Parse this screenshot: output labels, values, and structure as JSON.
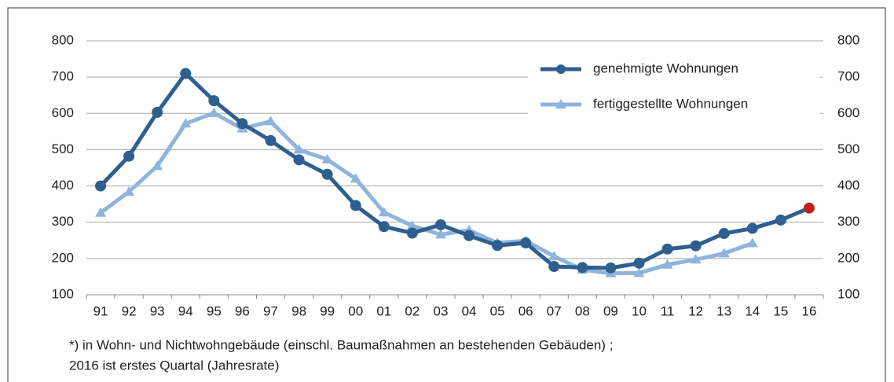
{
  "chart_data": {
    "type": "line",
    "categories": [
      "91",
      "92",
      "93",
      "94",
      "95",
      "96",
      "97",
      "98",
      "99",
      "00",
      "01",
      "02",
      "03",
      "04",
      "05",
      "06",
      "07",
      "08",
      "09",
      "10",
      "11",
      "12",
      "13",
      "14",
      "15",
      "16"
    ],
    "series": [
      {
        "name": "genehmigte Wohnungen",
        "color": "#2e5f8e",
        "marker": "circle",
        "highlight_color": "#c0211e",
        "values": [
          400,
          482,
          603,
          710,
          635,
          572,
          525,
          472,
          432,
          346,
          288,
          270,
          293,
          263,
          236,
          243,
          178,
          175,
          174,
          187,
          226,
          235,
          269,
          283,
          306,
          339
        ]
      },
      {
        "name": "fertiggestellte Wohnungen",
        "color": "#8fb4dc",
        "marker": "triangle",
        "values": [
          326,
          384,
          455,
          572,
          601,
          558,
          578,
          500,
          473,
          420,
          327,
          290,
          266,
          278,
          243,
          249,
          206,
          169,
          159,
          160,
          183,
          197,
          214,
          242,
          null,
          null
        ]
      }
    ],
    "ylim": [
      100,
      800
    ],
    "yticks": [
      100,
      200,
      300,
      400,
      500,
      600,
      700,
      800
    ],
    "y2lim": [
      100,
      800
    ],
    "y2ticks": [
      100,
      200,
      300,
      400,
      500,
      600,
      700,
      800
    ],
    "grid": true,
    "legend": "upper right",
    "footnote": [
      "*)  in Wohn- und Nichtwohngebäude (einschl. Baumaßnahmen an bestehenden Gebäuden) ;",
      "2016 ist erstes Quartal (Jahresrate)"
    ]
  }
}
